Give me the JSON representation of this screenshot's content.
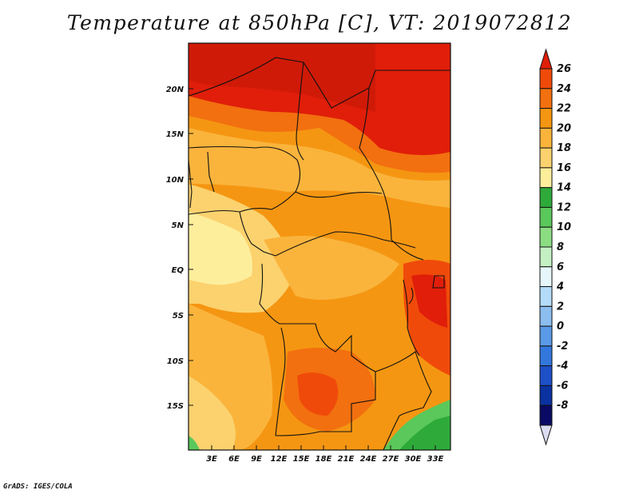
{
  "title": "Temperature at 850hPa [C], VT: 2019072812",
  "credit": "GrADS: IGES/COLA",
  "map": {
    "lon_ticks": [
      "3E",
      "6E",
      "9E",
      "12E",
      "15E",
      "18E",
      "21E",
      "24E",
      "27E",
      "30E",
      "33E"
    ],
    "lat_ticks": [
      "20N",
      "15N",
      "10N",
      "5N",
      "EQ",
      "5S",
      "10S",
      "15S"
    ],
    "field": "Temperature at 850hPa",
    "units": "C"
  },
  "colorbar": {
    "labels": [
      "26",
      "24",
      "22",
      "20",
      "18",
      "16",
      "14",
      "12",
      "10",
      "8",
      "6",
      "4",
      "2",
      "0",
      "-2",
      "-4",
      "-6",
      "-8"
    ],
    "colors": [
      "#e01e0a",
      "#f04a0a",
      "#f2700f",
      "#f59612",
      "#fab43c",
      "#fbd26e",
      "#fdee9c",
      "#2eaa3a",
      "#5ac85a",
      "#8cdd82",
      "#c4f0c4",
      "#e6f6fa",
      "#b4dcf8",
      "#8cbef0",
      "#5a9ae6",
      "#3278dc",
      "#1e50c8",
      "#0a32a0",
      "#0a0a64",
      "#dcdcf0"
    ]
  }
}
